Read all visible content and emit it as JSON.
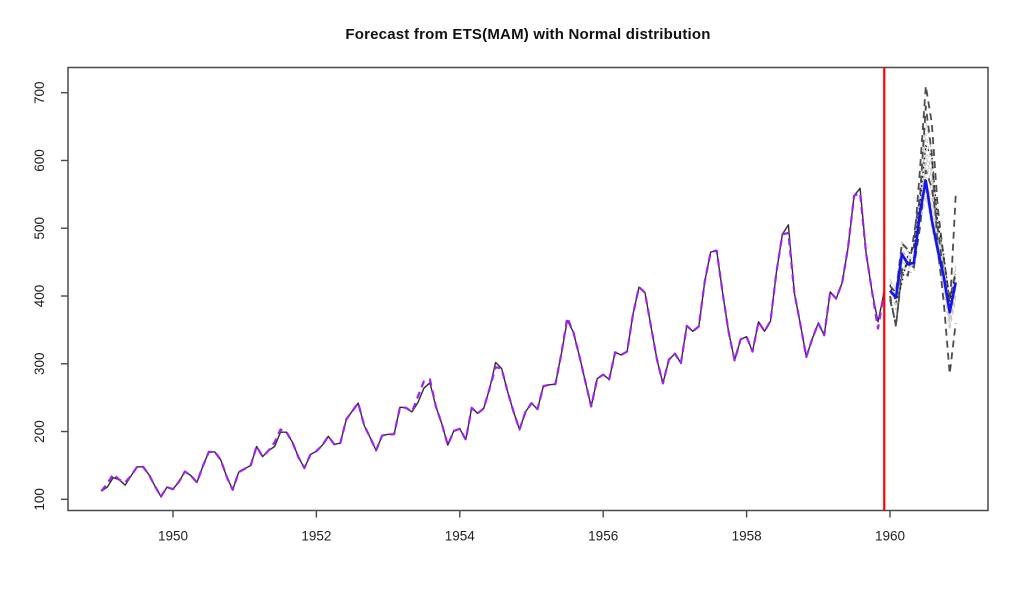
{
  "title": "Forecast from ETS(MAM) with Normal distribution",
  "colors": {
    "observed": "#2e2e2e",
    "fitted": "#A020F0",
    "forecast_mean": "#1414ee",
    "actual_future": "#1a1a1a",
    "sim_path_dark": "#4d4d4d",
    "sim_path_light": "#c9c9c9",
    "forecast_origin_line": "#ff0000",
    "axis": "#4a4a4a",
    "tick_label": "#1f1f1f"
  },
  "chart_data": {
    "type": "line",
    "title": "Forecast from ETS(MAM) with Normal distribution",
    "xlabel": "",
    "ylabel": "",
    "x_ticks": [
      1950,
      1952,
      1954,
      1956,
      1958,
      1960
    ],
    "y_ticks": [
      100,
      200,
      300,
      400,
      500,
      600,
      700
    ],
    "xlim": [
      1948.54,
      1961.37
    ],
    "ylim": [
      83,
      737
    ],
    "grid": "off",
    "legend": "none",
    "forecast_origin": 1959.92,
    "series": [
      {
        "name": "sim-path-light-1",
        "role": "simulated-path",
        "color": "#c9c9c9",
        "style": "dashed-short",
        "width": 1.1,
        "start": 1960,
        "step": 0.08333,
        "values": [
          415,
          400,
          470,
          455,
          460,
          530,
          600,
          560,
          480,
          440,
          385,
          425
        ]
      },
      {
        "name": "sim-path-light-2",
        "role": "simulated-path",
        "color": "#c9c9c9",
        "style": "dashed-short",
        "width": 1.1,
        "start": 1960,
        "step": 0.08333,
        "values": [
          400,
          385,
          450,
          445,
          440,
          515,
          555,
          500,
          460,
          415,
          365,
          410
        ]
      },
      {
        "name": "sim-path-light-3",
        "role": "simulated-path",
        "color": "#c9c9c9",
        "style": "dashed-short",
        "width": 1.1,
        "start": 1960,
        "step": 0.08333,
        "values": [
          425,
          410,
          475,
          465,
          470,
          545,
          620,
          580,
          495,
          450,
          395,
          440
        ]
      },
      {
        "name": "sim-path-light-4",
        "role": "simulated-path",
        "color": "#c9c9c9",
        "style": "dashed-short",
        "width": 1.1,
        "start": 1960,
        "step": 0.08333,
        "values": [
          395,
          405,
          455,
          440,
          450,
          520,
          575,
          530,
          465,
          420,
          355,
          400
        ]
      },
      {
        "name": "sim-path-light-5",
        "role": "simulated-path",
        "color": "#c9c9c9",
        "style": "dashed-short",
        "width": 1.1,
        "start": 1960,
        "step": 0.08333,
        "values": [
          410,
          390,
          460,
          450,
          445,
          535,
          640,
          590,
          505,
          445,
          375,
          415
        ]
      },
      {
        "name": "sim-path-light-6",
        "role": "simulated-path",
        "color": "#c9c9c9",
        "style": "dashed-short",
        "width": 1.1,
        "start": 1960,
        "step": 0.08333,
        "values": [
          405,
          395,
          465,
          460,
          455,
          510,
          565,
          545,
          475,
          430,
          370,
          430
        ]
      },
      {
        "name": "sim-path-light-7",
        "role": "simulated-path",
        "color": "#c9c9c9",
        "style": "dashed-short",
        "width": 1.1,
        "start": 1960,
        "step": 0.08333,
        "values": [
          420,
          415,
          480,
          470,
          465,
          550,
          660,
          610,
          515,
          455,
          400,
          445
        ]
      },
      {
        "name": "sim-path-light-8",
        "role": "simulated-path",
        "color": "#c9c9c9",
        "style": "dashed-short",
        "width": 1.1,
        "start": 1960,
        "step": 0.08333,
        "values": [
          390,
          380,
          445,
          435,
          435,
          505,
          545,
          515,
          455,
          410,
          350,
          395
        ]
      },
      {
        "name": "sim-path-light-9",
        "role": "simulated-path",
        "color": "#c9c9c9",
        "style": "dashed-short",
        "width": 1.1,
        "start": 1960,
        "step": 0.08333,
        "values": [
          412,
          402,
          468,
          452,
          458,
          528,
          590,
          552,
          482,
          436,
          368,
          418
        ]
      },
      {
        "name": "sim-path-light-10",
        "role": "simulated-path",
        "color": "#c9c9c9",
        "style": "dashed-short",
        "width": 1.1,
        "start": 1960,
        "step": 0.08333,
        "values": [
          398,
          388,
          452,
          442,
          446,
          512,
          608,
          572,
          492,
          428,
          362,
          408
        ]
      },
      {
        "name": "sim-path-dark-1",
        "role": "simulated-path",
        "color": "#4d4d4d",
        "style": "dashed",
        "width": 1.8,
        "start": 1960,
        "step": 0.08333,
        "values": [
          415,
          405,
          478,
          468,
          472,
          585,
          710,
          655,
          530,
          455,
          395,
          435
        ]
      },
      {
        "name": "sim-path-dark-2",
        "role": "simulated-path",
        "color": "#4d4d4d",
        "style": "dashed",
        "width": 1.8,
        "start": 1960,
        "step": 0.08333,
        "values": [
          400,
          355,
          440,
          430,
          490,
          545,
          680,
          610,
          470,
          390,
          285,
          360
        ]
      },
      {
        "name": "sim-path-dark-3",
        "role": "simulated-path",
        "color": "#4d4d4d",
        "style": "dashed",
        "width": 1.8,
        "start": 1960,
        "step": 0.08333,
        "values": [
          395,
          358,
          432,
          450,
          442,
          500,
          585,
          560,
          500,
          430,
          380,
          548
        ]
      },
      {
        "name": "actual-1960",
        "role": "actual-future-values",
        "color": "#1a1a1a",
        "style": "dotted",
        "width": 1.2,
        "start": 1960,
        "step": 0.08333,
        "values": [
          417,
          391,
          419,
          461,
          472,
          535,
          622,
          606,
          508,
          461,
          390,
          432
        ]
      },
      {
        "name": "observed",
        "role": "observed-data",
        "color": "#2e2e2e",
        "style": "solid",
        "width": 1.4,
        "start": 1949,
        "step": 0.08333,
        "values": [
          112,
          118,
          132,
          129,
          121,
          135,
          148,
          148,
          136,
          119,
          104,
          118,
          115,
          126,
          141,
          135,
          125,
          149,
          170,
          170,
          158,
          133,
          114,
          140,
          145,
          150,
          178,
          163,
          172,
          178,
          199,
          199,
          184,
          162,
          146,
          166,
          171,
          180,
          193,
          181,
          183,
          218,
          230,
          242,
          209,
          191,
          172,
          194,
          196,
          196,
          236,
          235,
          229,
          243,
          264,
          272,
          237,
          211,
          180,
          201,
          204,
          188,
          235,
          227,
          234,
          264,
          302,
          293,
          259,
          229,
          203,
          229,
          242,
          233,
          267,
          269,
          270,
          315,
          364,
          347,
          312,
          274,
          237,
          278,
          284,
          277,
          317,
          313,
          318,
          374,
          413,
          405,
          355,
          306,
          271,
          306,
          315,
          301,
          356,
          348,
          355,
          422,
          465,
          467,
          404,
          347,
          305,
          336,
          340,
          318,
          362,
          348,
          363,
          435,
          491,
          505,
          404,
          359,
          310,
          337,
          360,
          342,
          406,
          396,
          420,
          472,
          548,
          559,
          463,
          407,
          362,
          405
        ]
      },
      {
        "name": "fitted",
        "role": "fitted-values",
        "color": "#A020F0",
        "style": "dashed",
        "width": 2.2,
        "start": 1949,
        "step": 0.08333,
        "values": [
          112,
          123,
          137,
          129,
          125,
          135,
          148,
          148,
          136,
          119,
          104,
          118,
          115,
          126,
          141,
          135,
          125,
          149,
          170,
          170,
          158,
          133,
          114,
          140,
          145,
          150,
          178,
          163,
          172,
          184,
          203,
          199,
          184,
          162,
          146,
          166,
          171,
          180,
          193,
          181,
          183,
          218,
          230,
          242,
          209,
          191,
          172,
          194,
          196,
          196,
          236,
          235,
          229,
          252,
          274,
          277,
          237,
          211,
          180,
          201,
          204,
          188,
          235,
          227,
          234,
          264,
          295,
          293,
          259,
          229,
          203,
          229,
          242,
          233,
          267,
          269,
          270,
          315,
          368,
          347,
          312,
          274,
          237,
          278,
          284,
          277,
          317,
          313,
          318,
          374,
          413,
          405,
          355,
          306,
          271,
          306,
          315,
          301,
          356,
          348,
          355,
          422,
          465,
          467,
          404,
          347,
          305,
          336,
          340,
          318,
          362,
          348,
          363,
          435,
          491,
          493,
          404,
          359,
          310,
          337,
          360,
          342,
          406,
          396,
          420,
          472,
          548,
          552,
          463,
          407,
          352,
          405
        ]
      },
      {
        "name": "forecast-mean",
        "role": "point-forecast",
        "color": "#1414ee",
        "style": "solid",
        "width": 2.6,
        "start": 1960,
        "step": 0.08333,
        "values": [
          408,
          398,
          462,
          447,
          449,
          523,
          570,
          512,
          468,
          428,
          376,
          420
        ]
      }
    ]
  }
}
